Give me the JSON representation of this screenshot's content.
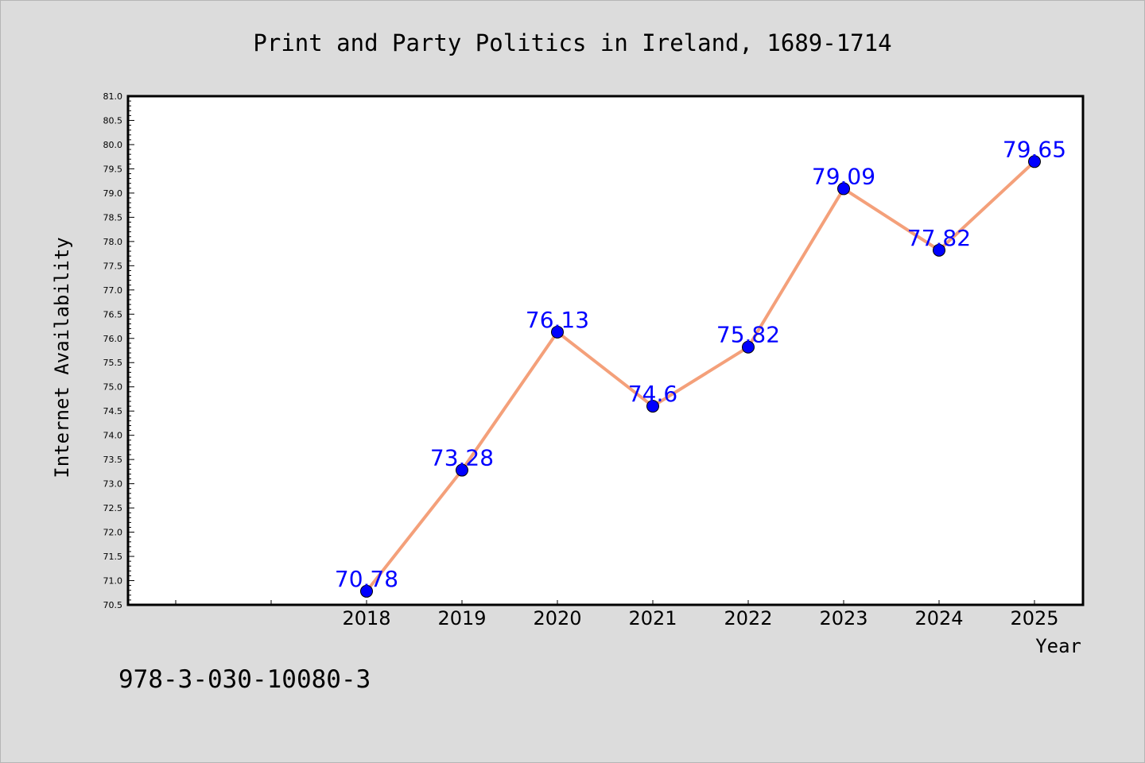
{
  "chart_data": {
    "type": "line",
    "title": "Print and Party Politics in Ireland, 1689-1714",
    "xlabel": "Year",
    "ylabel": "Internet Availability",
    "x": [
      "2018",
      "2019",
      "2020",
      "2021",
      "2022",
      "2023",
      "2024",
      "2025"
    ],
    "y": [
      70.78,
      73.28,
      76.13,
      74.6,
      75.82,
      79.09,
      77.82,
      79.65
    ],
    "data_labels": [
      "70.78",
      "73.28",
      "76.13",
      "74.6",
      "75.82",
      "79.09",
      "77.82",
      "79.65"
    ],
    "ylim": [
      70.5,
      81.0
    ],
    "y_ticks": [
      "70.5",
      "71.0",
      "71.5",
      "72.0",
      "72.5",
      "73.0",
      "73.5",
      "74.0",
      "74.5",
      "75.0",
      "75.5",
      "76.0",
      "76.5",
      "77.0",
      "77.5",
      "78.0",
      "78.5",
      "79.0",
      "79.5",
      "80.0",
      "80.5",
      "81.0"
    ],
    "grid": false,
    "legend": "none",
    "colors": {
      "line": "#f4a07a",
      "marker": "#0000ff",
      "data_label": "#0000ff",
      "figure_background": "#dcdcdc",
      "plot_background": "#ffffff"
    }
  },
  "footer_text": "978-3-030-10080-3"
}
